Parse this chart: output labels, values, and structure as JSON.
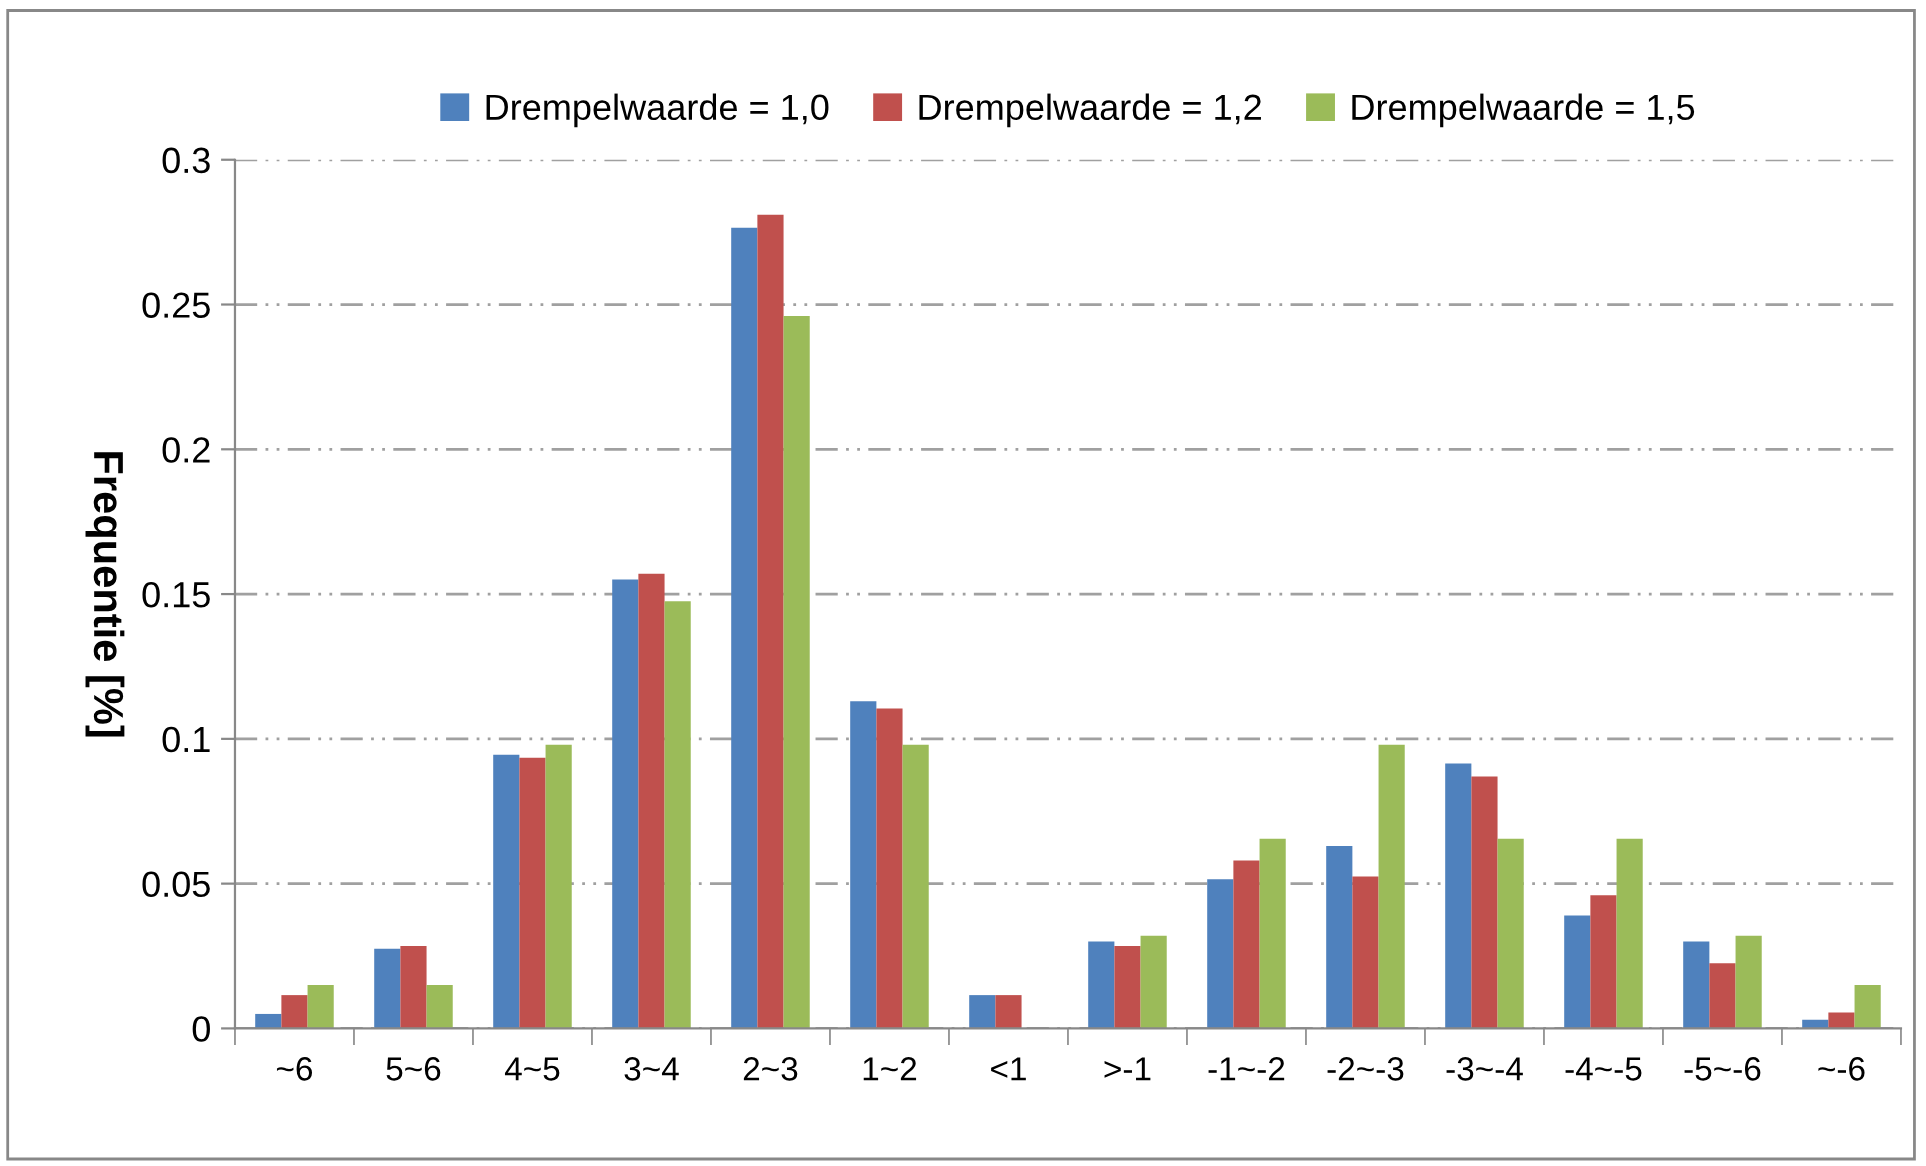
{
  "chart_data": {
    "type": "bar",
    "ylabel": "Frequentie [%]",
    "categories": [
      "~6",
      "5~6",
      "4~5",
      "3~4",
      "2~3",
      "1~2",
      "<1",
      ">-1",
      "-1~-2",
      "-2~-3",
      "-3~-4",
      "-4~-5",
      "-5~-6",
      "~-6"
    ],
    "series": [
      {
        "name": "Drempelwaarde = 1,0",
        "color": "#4f81bd",
        "values": [
          0.005,
          0.0275,
          0.0945,
          0.155,
          0.2765,
          0.113,
          0.0115,
          0.03,
          0.0515,
          0.063,
          0.0915,
          0.039,
          0.03,
          0.003
        ]
      },
      {
        "name": "Drempelwaarde = 1,2",
        "color": "#c0504d",
        "values": [
          0.0115,
          0.0285,
          0.0935,
          0.157,
          0.281,
          0.1105,
          0.0115,
          0.0285,
          0.058,
          0.0525,
          0.087,
          0.046,
          0.0225,
          0.0055
        ]
      },
      {
        "name": "Drempelwaarde = 1,5",
        "color": "#9bbb59",
        "values": [
          0.015,
          0.015,
          0.098,
          0.1475,
          0.246,
          0.098,
          0,
          0.032,
          0.0655,
          0.098,
          0.0655,
          0.0655,
          0.032,
          0.015
        ]
      }
    ],
    "ylim": [
      0,
      0.3
    ],
    "yticks": [
      0,
      0.05,
      0.1,
      0.15,
      0.2,
      0.25,
      0.3
    ],
    "grid": "y",
    "legend": "top"
  }
}
